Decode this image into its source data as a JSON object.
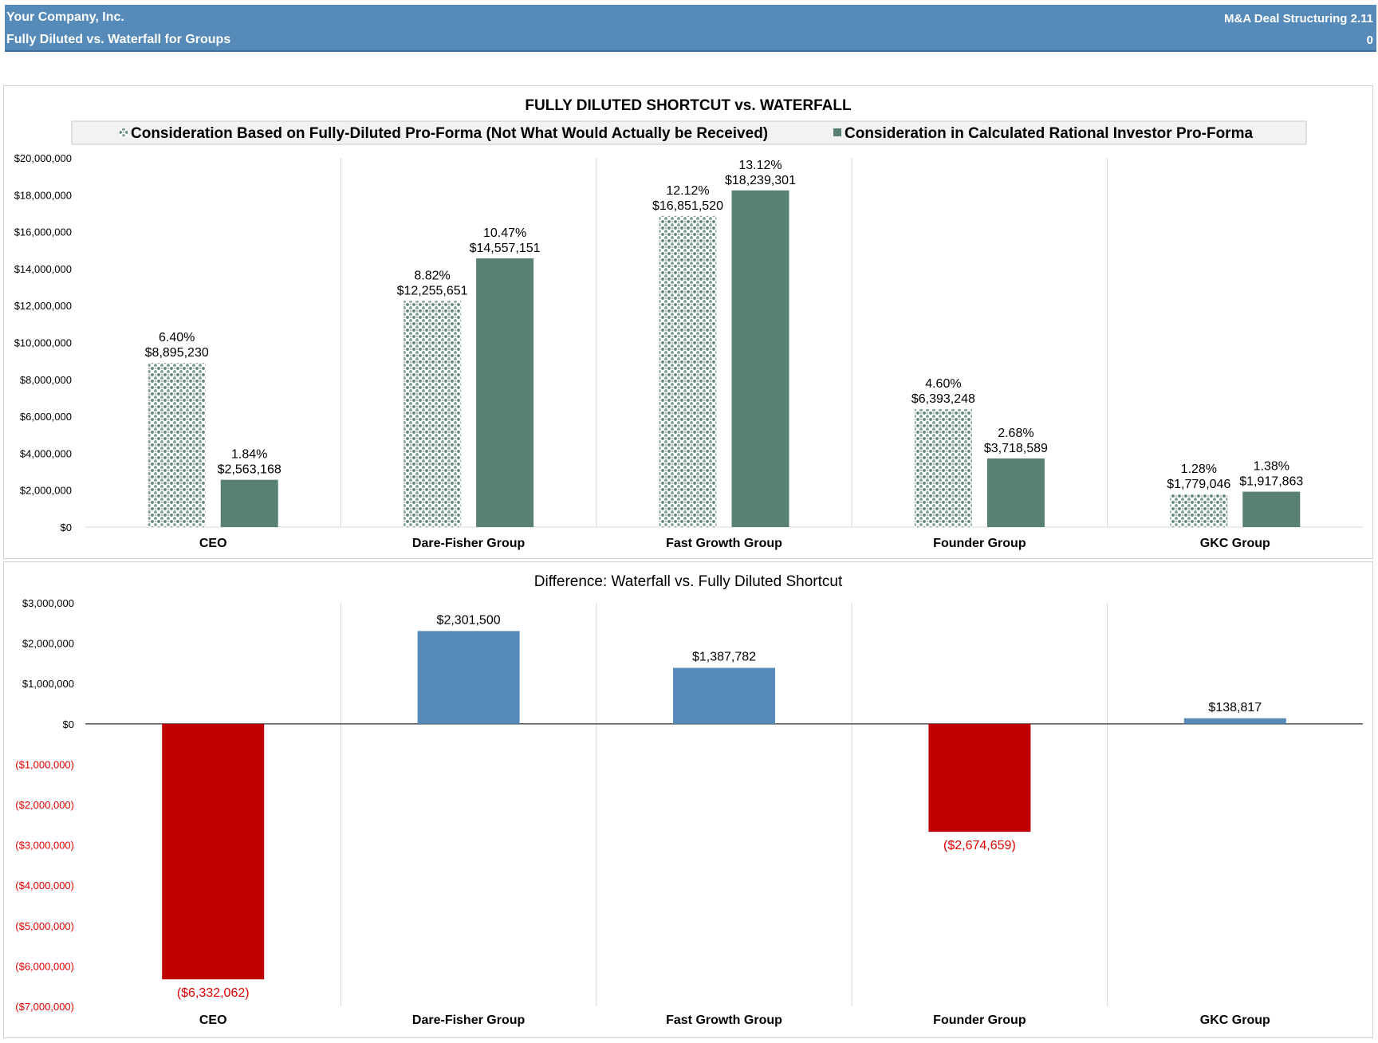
{
  "header": {
    "company": "Your Company, Inc.",
    "subtitle": "Fully Diluted vs. Waterfall for Groups",
    "app": "M&A Deal Structuring 2.11",
    "number": "0"
  },
  "colors": {
    "header_bg": "#558ab9",
    "series_solid": "#588174",
    "series_dotted": "#7fa095",
    "positive": "#558ab9",
    "negative": "#c00000"
  },
  "chart_data": [
    {
      "type": "bar",
      "title": "FULLY DILUTED SHORTCUT vs. WATERFALL",
      "categories": [
        "CEO",
        "Dare-Fisher Group",
        "Fast Growth Group",
        "Founder Group",
        "GKC Group"
      ],
      "series": [
        {
          "name": "Consideration Based on Fully-Diluted Pro-Forma (Not What Would Actually be Received)",
          "values": [
            8895230,
            12255651,
            16851520,
            6393248,
            1779046
          ],
          "value_labels": [
            "$8,895,230",
            "$12,255,651",
            "$16,851,520",
            "$6,393,248",
            "$1,779,046"
          ],
          "pct_labels": [
            "6.40%",
            "8.82%",
            "12.12%",
            "4.60%",
            "1.28%"
          ],
          "pattern": "dotted"
        },
        {
          "name": "Consideration in Calculated Rational Investor Pro-Forma",
          "values": [
            2563168,
            14557151,
            18239301,
            3718589,
            1917863
          ],
          "value_labels": [
            "$2,563,168",
            "$14,557,151",
            "$18,239,301",
            "$3,718,589",
            "$1,917,863"
          ],
          "pct_labels": [
            "1.84%",
            "10.47%",
            "13.12%",
            "2.68%",
            "1.38%"
          ],
          "pattern": "solid"
        }
      ],
      "ylim": [
        0,
        20000000
      ],
      "yticks": [
        0,
        2000000,
        4000000,
        6000000,
        8000000,
        10000000,
        12000000,
        14000000,
        16000000,
        18000000,
        20000000
      ],
      "ytick_labels": [
        "$0",
        "$2,000,000",
        "$4,000,000",
        "$6,000,000",
        "$8,000,000",
        "$10,000,000",
        "$12,000,000",
        "$14,000,000",
        "$16,000,000",
        "$18,000,000",
        "$20,000,000"
      ],
      "legend_position": "top",
      "grid": "vertical category separators"
    },
    {
      "type": "bar",
      "title": "Difference: Waterfall vs. Fully Diluted Shortcut",
      "categories": [
        "CEO",
        "Dare-Fisher Group",
        "Fast Growth Group",
        "Founder Group",
        "GKC Group"
      ],
      "values": [
        -6332062,
        2301500,
        1387782,
        -2674659,
        138817
      ],
      "value_labels": [
        "($6,332,062)",
        "$2,301,500",
        "$1,387,782",
        "($2,674,659)",
        "$138,817"
      ],
      "ylim": [
        -7000000,
        3000000
      ],
      "yticks": [
        3000000,
        2000000,
        1000000,
        0,
        -1000000,
        -2000000,
        -3000000,
        -4000000,
        -5000000,
        -6000000,
        -7000000
      ],
      "ytick_labels": [
        "$3,000,000",
        "$2,000,000",
        "$1,000,000",
        "$0",
        "($1,000,000)",
        "($2,000,000)",
        "($3,000,000)",
        "($4,000,000)",
        "($5,000,000)",
        "($6,000,000)",
        "($7,000,000)"
      ],
      "grid": "vertical category separators"
    }
  ]
}
